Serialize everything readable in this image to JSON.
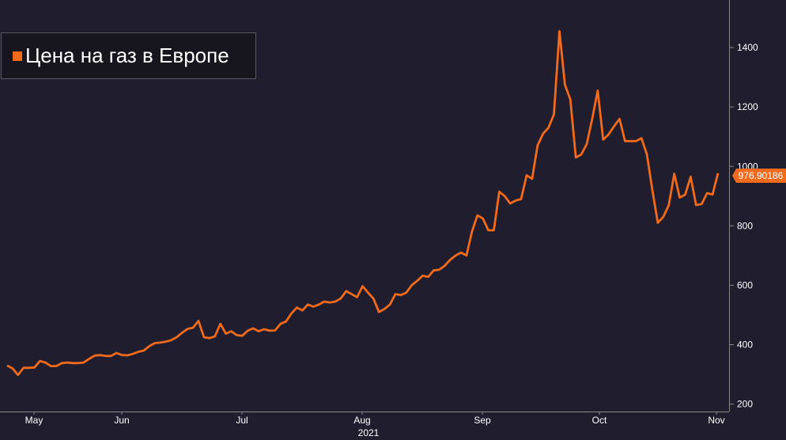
{
  "chart_data": {
    "type": "line",
    "legend": "Цена на газ в Европе",
    "series_color": "#f26a1b",
    "last_value_label": "976.90186",
    "year_label": "2021",
    "x_axis_labels": [
      "May",
      "Jun",
      "Jul",
      "Aug",
      "Sep",
      "Oct",
      "Nov"
    ],
    "y_ticks": [
      200,
      400,
      600,
      800,
      1000,
      1200,
      1400
    ],
    "ylim": [
      175,
      1560
    ],
    "y_axis_position": "right",
    "legend_position": "top-left",
    "grid": false,
    "values": [
      330,
      320,
      298,
      322,
      322,
      323,
      345,
      340,
      328,
      328,
      338,
      340,
      338,
      338,
      340,
      352,
      363,
      365,
      362,
      362,
      372,
      365,
      364,
      369,
      376,
      380,
      395,
      405,
      407,
      410,
      415,
      425,
      440,
      453,
      457,
      480,
      425,
      422,
      428,
      470,
      437,
      445,
      432,
      430,
      447,
      455,
      445,
      452,
      447,
      448,
      470,
      478,
      505,
      525,
      515,
      535,
      528,
      535,
      545,
      542,
      545,
      555,
      580,
      570,
      560,
      597,
      575,
      555,
      510,
      520,
      535,
      570,
      567,
      575,
      600,
      615,
      632,
      628,
      650,
      652,
      665,
      685,
      700,
      710,
      700,
      780,
      835,
      825,
      785,
      785,
      915,
      900,
      875,
      885,
      890,
      970,
      958,
      1070,
      1110,
      1130,
      1175,
      1455,
      1275,
      1225,
      1030,
      1040,
      1075,
      1160,
      1255,
      1090,
      1108,
      1135,
      1160,
      1085,
      1085,
      1085,
      1095,
      1040,
      920,
      810,
      830,
      870,
      975,
      895,
      905,
      965,
      870,
      873,
      910,
      905,
      977
    ]
  }
}
